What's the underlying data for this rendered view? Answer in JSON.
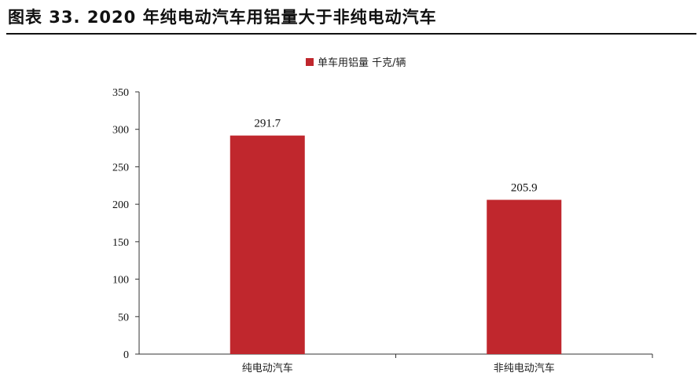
{
  "figure": {
    "title": "图表 33. 2020 年纯电动汽车用铝量大于非纯电动汽车"
  },
  "chart_data": {
    "type": "bar",
    "title": "",
    "xlabel": "",
    "ylabel": "",
    "categories": [
      "纯电动汽车",
      "非纯电动汽车"
    ],
    "series": [
      {
        "name": "单车用铝量 千克/辆",
        "values": [
          291.7,
          205.9
        ],
        "data_labels": [
          "291.7",
          "205.9"
        ],
        "color": "#C0272D"
      }
    ],
    "ylim": [
      0,
      350
    ],
    "yticks": [
      0,
      50,
      100,
      150,
      200,
      250,
      300,
      350
    ],
    "grid": false,
    "legend_position": "top-center"
  }
}
